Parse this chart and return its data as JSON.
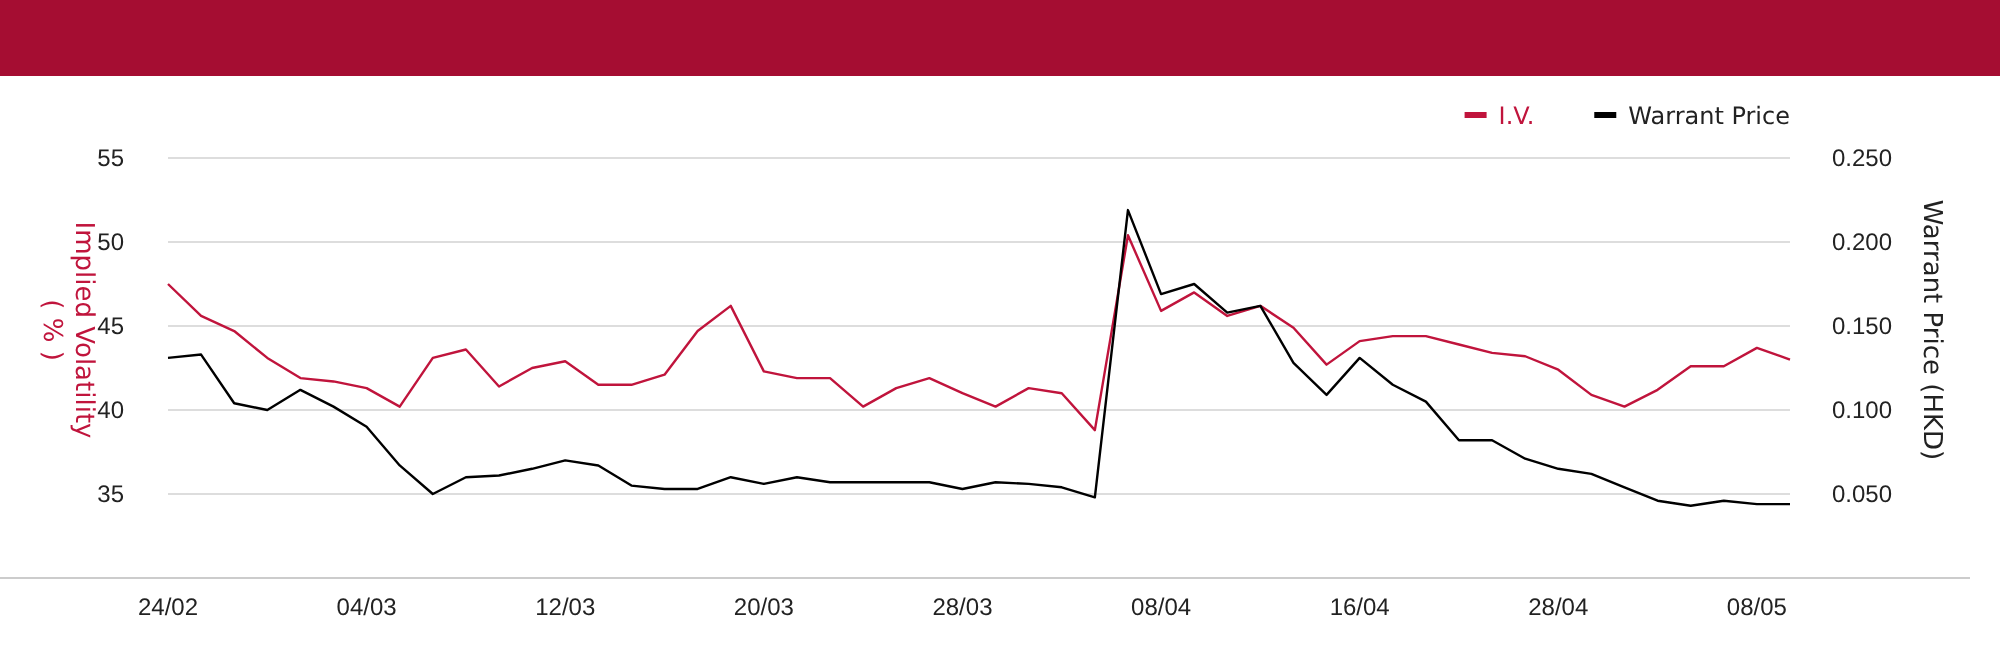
{
  "chart_data": {
    "type": "line",
    "ylabel": "Implied Volatility\n( % )",
    "y2label": "Warrant Price (HKD)",
    "categories": [
      "24/02",
      null,
      null,
      null,
      null,
      null,
      "04/03",
      null,
      null,
      null,
      null,
      null,
      "12/03",
      null,
      null,
      null,
      null,
      null,
      "20/03",
      null,
      null,
      null,
      null,
      null,
      "28/03",
      null,
      null,
      null,
      null,
      null,
      "08/04",
      null,
      null,
      null,
      null,
      null,
      "16/04",
      null,
      null,
      null,
      null,
      null,
      "28/04",
      null,
      null,
      null,
      null,
      null,
      "08/05",
      null
    ],
    "series": [
      {
        "name": "I.V.",
        "color": "#c0143c",
        "values": [
          47.5,
          45.6,
          44.7,
          43.1,
          41.9,
          41.7,
          41.3,
          40.2,
          43.1,
          43.6,
          41.4,
          42.5,
          42.9,
          41.5,
          41.5,
          42.1,
          44.7,
          46.2,
          42.3,
          41.9,
          41.9,
          40.2,
          41.3,
          41.9,
          41.0,
          40.2,
          41.3,
          41.0,
          38.8,
          50.4,
          45.9,
          47.0,
          45.6,
          46.2,
          44.9,
          42.7,
          44.1,
          44.4,
          44.4,
          43.9,
          43.4,
          43.2,
          42.4,
          40.9,
          40.2,
          41.2,
          42.6,
          42.6,
          43.7,
          43.0
        ]
      },
      {
        "name": "Warrant Price",
        "color": "#000000",
        "axis": "y2",
        "values": [
          0.131,
          0.133,
          0.104,
          0.1,
          0.112,
          0.102,
          0.09,
          0.067,
          0.05,
          0.06,
          0.061,
          0.065,
          0.07,
          0.067,
          0.055,
          0.053,
          0.053,
          0.06,
          0.056,
          0.06,
          0.057,
          0.057,
          0.057,
          0.057,
          0.053,
          0.057,
          0.056,
          0.054,
          0.048,
          0.219,
          0.169,
          0.175,
          0.158,
          0.162,
          0.128,
          0.109,
          0.131,
          0.115,
          0.105,
          0.082,
          0.082,
          0.071,
          0.065,
          0.062,
          0.054,
          0.046,
          0.043,
          0.046,
          0.044,
          0.044
        ]
      }
    ],
    "ylim": [
      30,
      55
    ],
    "yticks": [
      35,
      40,
      45,
      50,
      55
    ],
    "y2lim": [
      0,
      0.25
    ],
    "y2ticks": [
      {
        "value": 0.05,
        "label": "0.050"
      },
      {
        "value": 0.1,
        "label": "0.100"
      },
      {
        "value": 0.15,
        "label": "0.150"
      },
      {
        "value": 0.2,
        "label": "0.200"
      },
      {
        "value": 0.25,
        "label": "0.250"
      }
    ],
    "grid": "y",
    "legend": "top right",
    "marker": "none",
    "line_style": "solid"
  }
}
